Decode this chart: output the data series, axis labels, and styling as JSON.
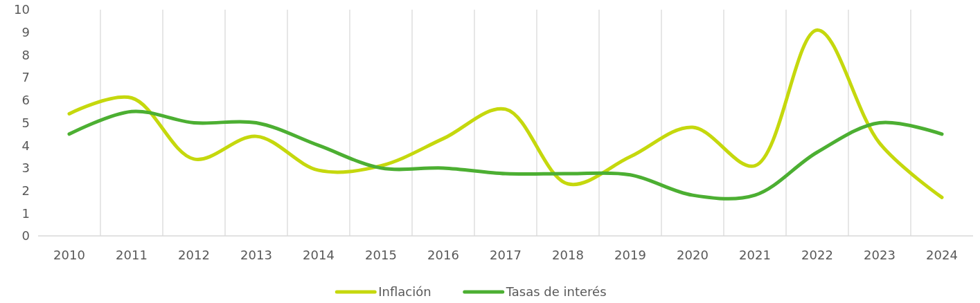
{
  "chart_data": {
    "type": "line",
    "categories": [
      "2010",
      "2011",
      "2012",
      "2013",
      "2014",
      "2015",
      "2016",
      "2017",
      "2018",
      "2019",
      "2020",
      "2021",
      "2022",
      "2023",
      "2024"
    ],
    "series": [
      {
        "name": "Inflación",
        "color": "#c5d80d",
        "values": [
          5.4,
          6.1,
          3.4,
          4.4,
          2.9,
          3.1,
          4.3,
          5.6,
          2.3,
          3.5,
          4.8,
          3.1,
          9.1,
          4.1,
          1.7
        ]
      },
      {
        "name": "Tasas de interés",
        "color": "#4caf32",
        "values": [
          4.5,
          5.5,
          5.0,
          5.0,
          4.0,
          3.0,
          3.0,
          2.75,
          2.75,
          2.7,
          1.8,
          1.8,
          3.7,
          5.0,
          4.5
        ]
      }
    ],
    "ylim": [
      0,
      10
    ],
    "yticks": [
      0,
      1,
      2,
      3,
      4,
      5,
      6,
      7,
      8,
      9,
      10
    ],
    "grid": "x",
    "legend": "bottom",
    "line_style": "solid",
    "marker": "none"
  }
}
